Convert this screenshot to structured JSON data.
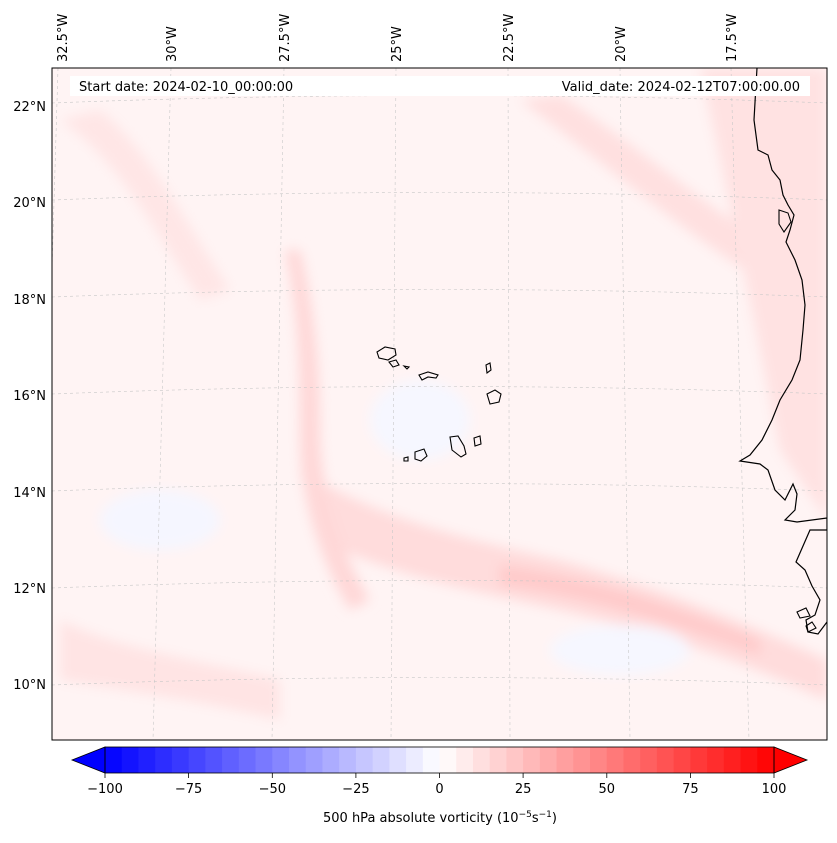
{
  "map": {
    "start_date": "Start date: 2024-02-10_00:00:00",
    "valid_date": "Valid_date: 2024-02-12T07:00:00.00",
    "lon_labels": [
      "32.5°W",
      "30°W",
      "27.5°W",
      "25°W",
      "22.5°W",
      "20°W",
      "17.5°W"
    ],
    "lat_labels": [
      "22°N",
      "20°N",
      "18°N",
      "16°N",
      "14°N",
      "12°N",
      "10°N"
    ]
  },
  "colorbar": {
    "tick_labels": [
      "−100",
      "−75",
      "−50",
      "−25",
      "0",
      "25",
      "50",
      "75",
      "100"
    ],
    "label": "500 hPa absolute vorticity (10",
    "label_unit_exp1": "−5",
    "label_unit_mid": "s",
    "label_unit_exp2": "−1",
    "label_close": ")",
    "colors": {
      "negative": "#0000ff",
      "zero": "#ffffff",
      "positive": "#ff0000"
    }
  },
  "features": {
    "islands": "Cape Verde Islands",
    "coast": "West African coastline"
  }
}
